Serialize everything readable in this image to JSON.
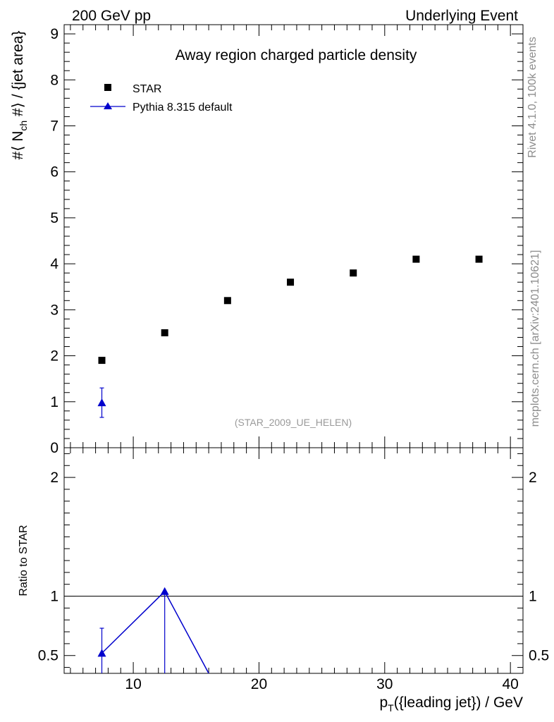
{
  "header": {
    "left": "200 GeV pp",
    "right": "Underlying Event"
  },
  "side_labels": {
    "rivet": "Rivet 4.1.0,  100k events",
    "mcplots": "mcplots.cern.ch [arXiv:2401.10621]"
  },
  "chart_data": [
    {
      "type": "scatter",
      "title": "Away region charged particle density",
      "watermark": "(STAR_2009_UE_HELEN)",
      "ylabel": "#⟨ N_ch #⟩ / {jet area}",
      "ylabel_parts": {
        "pre": "#⟨ N",
        "sub": "ch",
        "post": " #⟩ / {jet area}"
      },
      "xlim": [
        4.5,
        41
      ],
      "ylim": [
        0,
        9.2
      ],
      "yticks": [
        0,
        1,
        2,
        3,
        4,
        5,
        6,
        7,
        8,
        9
      ],
      "legend_position": "top-left",
      "series": [
        {
          "name": "STAR",
          "marker": "square",
          "color": "#000000",
          "x": [
            7.5,
            12.5,
            17.5,
            22.5,
            27.5,
            32.5,
            37.5
          ],
          "y": [
            1.9,
            2.5,
            3.2,
            3.6,
            3.8,
            4.1,
            4.1
          ]
        },
        {
          "name": "Pythia 8.315 default",
          "marker": "triangle",
          "color": "#0000cc",
          "x": [
            7.5
          ],
          "y": [
            0.98
          ],
          "yerr_low": [
            0.32
          ],
          "yerr_high": [
            0.32
          ]
        }
      ]
    },
    {
      "type": "line",
      "ylabel": "Ratio to STAR",
      "xlabel": "p_T({leading jet}) / GeV",
      "xlabel_parts": {
        "pre": "p",
        "sub": "T",
        "post": "({leading jet}) / GeV"
      },
      "xlim": [
        4.5,
        41
      ],
      "ylim": [
        0.35,
        2.25
      ],
      "yticks": [
        0.5,
        1,
        2
      ],
      "ytick_labels": [
        "0.5",
        "1",
        "2"
      ],
      "xticks": [
        10,
        20,
        30,
        40
      ],
      "xtick_labels": [
        "10",
        "20",
        "30",
        "40"
      ],
      "reference_line": 1,
      "series": [
        {
          "name": "Pythia 8.315 default",
          "color": "#0000cc",
          "x": [
            7.5,
            12.5,
            16.0
          ],
          "y": [
            0.52,
            1.04,
            0.35
          ],
          "marker_x": [
            7.5,
            12.5
          ],
          "marker_y": [
            0.52,
            1.04
          ],
          "yerr_low": [
            0.2,
            0.7
          ],
          "yerr_high": [
            0.21,
            0.0
          ]
        }
      ]
    }
  ]
}
